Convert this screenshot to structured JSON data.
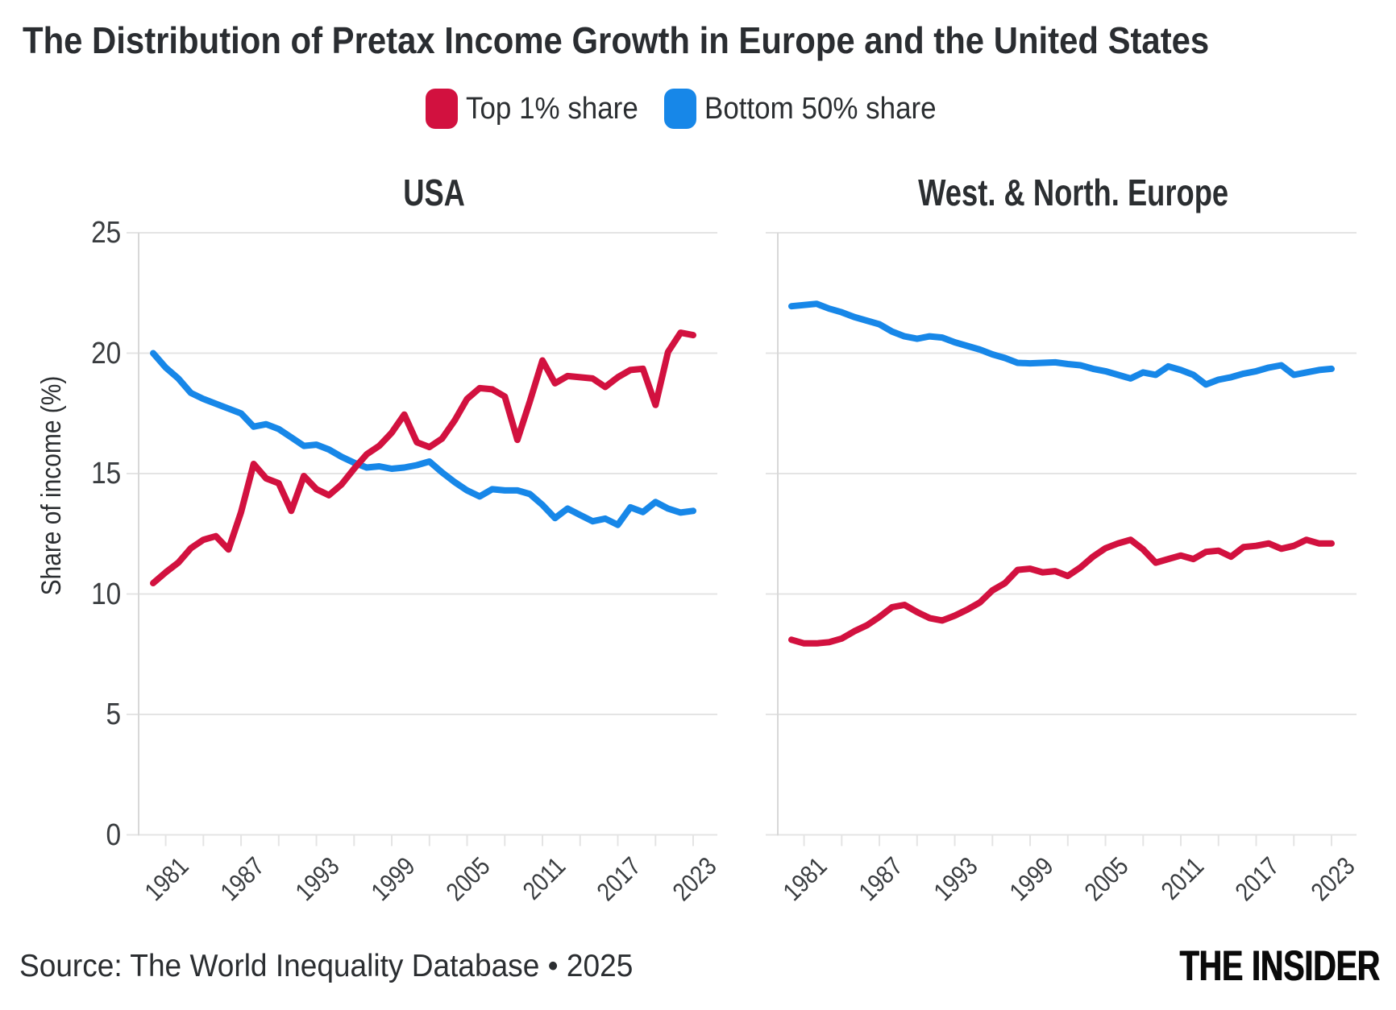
{
  "title": "The Distribution of Pretax Income Growth in Europe and the United States",
  "legend": {
    "items": [
      {
        "label": "Top 1% share",
        "color": "#d2113f"
      },
      {
        "label": "Bottom 50% share",
        "color": "#1787e8"
      }
    ]
  },
  "y_axis": {
    "label": "Share of income (%)",
    "ticks": [
      0,
      5,
      10,
      15,
      20,
      25
    ],
    "max": 25
  },
  "x_axis": {
    "tick_years": [
      1981,
      1984,
      1987,
      1990,
      1993,
      1996,
      1999,
      2002,
      2005,
      2008,
      2011,
      2014,
      2017,
      2020,
      2023
    ],
    "label_years": [
      1981,
      1987,
      1993,
      1999,
      2005,
      2011,
      2017,
      2023
    ]
  },
  "footer": {
    "source": "Source: The World Inequality Database • 2025",
    "logo": "THE INSIDER"
  },
  "chart_data": [
    {
      "type": "line",
      "title": "USA",
      "xlabel": "",
      "ylabel": "Share of income (%)",
      "ylim": [
        0,
        25
      ],
      "x": [
        1980,
        1981,
        1982,
        1983,
        1984,
        1985,
        1986,
        1987,
        1988,
        1989,
        1990,
        1991,
        1992,
        1993,
        1994,
        1995,
        1996,
        1997,
        1998,
        1999,
        2000,
        2001,
        2002,
        2003,
        2004,
        2005,
        2006,
        2007,
        2008,
        2009,
        2010,
        2011,
        2012,
        2013,
        2014,
        2015,
        2016,
        2017,
        2018,
        2019,
        2020,
        2021,
        2022,
        2023
      ],
      "series": [
        {
          "name": "Top 1% share",
          "color": "#d2113f",
          "values": [
            10.45,
            10.9,
            11.3,
            11.9,
            12.25,
            12.4,
            11.85,
            13.4,
            15.4,
            14.8,
            14.6,
            13.45,
            14.9,
            14.35,
            14.1,
            14.55,
            15.2,
            15.8,
            16.15,
            16.7,
            17.45,
            16.3,
            16.1,
            16.45,
            17.2,
            18.1,
            18.55,
            18.5,
            18.2,
            16.4,
            18.0,
            19.7,
            18.75,
            19.05,
            19.0,
            18.95,
            18.6,
            19.0,
            19.3,
            19.35,
            17.85,
            20.05,
            20.85,
            20.75
          ]
        },
        {
          "name": "Bottom 50% share",
          "color": "#1787e8",
          "values": [
            20.0,
            19.4,
            18.95,
            18.35,
            18.1,
            17.9,
            17.7,
            17.5,
            16.95,
            17.05,
            16.85,
            16.5,
            16.15,
            16.2,
            16.0,
            15.7,
            15.45,
            15.25,
            15.3,
            15.2,
            15.25,
            15.35,
            15.5,
            15.05,
            14.65,
            14.3,
            14.05,
            14.35,
            14.3,
            14.3,
            14.15,
            13.7,
            13.15,
            13.55,
            13.28,
            13.02,
            13.13,
            12.87,
            13.6,
            13.4,
            13.82,
            13.55,
            13.38,
            13.45
          ]
        }
      ]
    },
    {
      "type": "line",
      "title": "West. & North. Europe",
      "xlabel": "",
      "ylabel": "Share of income (%)",
      "ylim": [
        0,
        25
      ],
      "x": [
        1980,
        1981,
        1982,
        1983,
        1984,
        1985,
        1986,
        1987,
        1988,
        1989,
        1990,
        1991,
        1992,
        1993,
        1994,
        1995,
        1996,
        1997,
        1998,
        1999,
        2000,
        2001,
        2002,
        2003,
        2004,
        2005,
        2006,
        2007,
        2008,
        2009,
        2010,
        2011,
        2012,
        2013,
        2014,
        2015,
        2016,
        2017,
        2018,
        2019,
        2020,
        2021,
        2022,
        2023
      ],
      "series": [
        {
          "name": "Top 1% share",
          "color": "#d2113f",
          "values": [
            8.1,
            7.95,
            7.95,
            8.0,
            8.15,
            8.45,
            8.7,
            9.05,
            9.45,
            9.55,
            9.25,
            9.0,
            8.9,
            9.1,
            9.35,
            9.65,
            10.15,
            10.45,
            11.0,
            11.05,
            10.9,
            10.95,
            10.75,
            11.1,
            11.55,
            11.9,
            12.1,
            12.25,
            11.85,
            11.3,
            11.45,
            11.6,
            11.45,
            11.75,
            11.8,
            11.55,
            11.95,
            12.0,
            12.1,
            11.88,
            12.0,
            12.25,
            12.1,
            12.1
          ]
        },
        {
          "name": "Bottom 50% share",
          "color": "#1787e8",
          "values": [
            21.95,
            22.0,
            22.05,
            21.85,
            21.7,
            21.5,
            21.35,
            21.2,
            20.9,
            20.7,
            20.6,
            20.7,
            20.65,
            20.45,
            20.3,
            20.15,
            19.95,
            19.8,
            19.6,
            19.58,
            19.6,
            19.62,
            19.55,
            19.5,
            19.35,
            19.25,
            19.1,
            18.95,
            19.2,
            19.1,
            19.45,
            19.3,
            19.1,
            18.7,
            18.9,
            19.0,
            19.15,
            19.25,
            19.4,
            19.5,
            19.1,
            19.2,
            19.3,
            19.35
          ]
        }
      ]
    }
  ],
  "style": {
    "red": "#d2113f",
    "blue": "#1787e8",
    "grid": "#e4e4e4",
    "axis": "#d8d8d8",
    "text": "#2b2e31",
    "tick_text": "#3a3d40",
    "title_text": "#2a2d31"
  }
}
